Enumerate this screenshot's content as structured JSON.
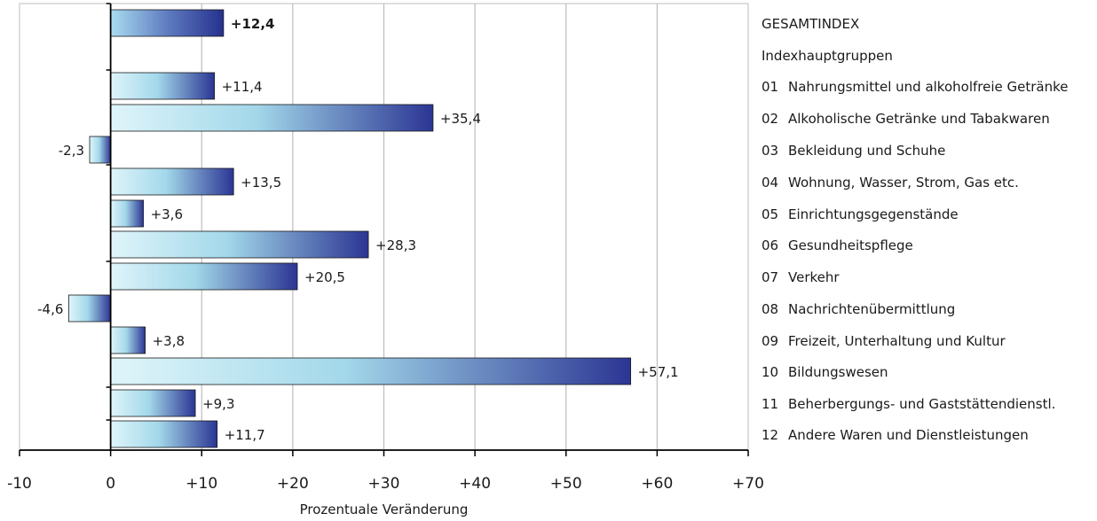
{
  "chart_data": {
    "type": "bar",
    "orientation": "horizontal",
    "xlabel": "Prozentuale Veränderung",
    "xlim": [
      -10,
      70
    ],
    "xticks": [
      "-10",
      "0",
      "+10",
      "+20",
      "+30",
      "+40",
      "+50",
      "+60",
      "+70"
    ],
    "grid": true,
    "header_category": "GESAMTINDEX",
    "group_heading": "Indexhauptgruppen",
    "bars": [
      {
        "code": "",
        "label": "GESAMTINDEX",
        "value": 12.4,
        "value_label": "+12,4",
        "emphasis": true
      },
      {
        "code": "01",
        "label": "Nahrungsmittel und alkoholfreie Getränke",
        "value": 11.4,
        "value_label": "+11,4"
      },
      {
        "code": "02",
        "label": "Alkoholische Getränke und Tabakwaren",
        "value": 35.4,
        "value_label": "+35,4"
      },
      {
        "code": "03",
        "label": "Bekleidung und Schuhe",
        "value": -2.3,
        "value_label": "-2,3"
      },
      {
        "code": "04",
        "label": "Wohnung, Wasser, Strom, Gas etc.",
        "value": 13.5,
        "value_label": "+13,5"
      },
      {
        "code": "05",
        "label": "Einrichtungsgegenstände",
        "value": 3.6,
        "value_label": "+3,6"
      },
      {
        "code": "06",
        "label": "Gesundheitspflege",
        "value": 28.3,
        "value_label": "+28,3"
      },
      {
        "code": "07",
        "label": "Verkehr",
        "value": 20.5,
        "value_label": "+20,5"
      },
      {
        "code": "08",
        "label": "Nachrichtenübermittlung",
        "value": -4.6,
        "value_label": "-4,6"
      },
      {
        "code": "09",
        "label": "Freizeit, Unterhaltung und Kultur",
        "value": 3.8,
        "value_label": "+3,8"
      },
      {
        "code": "10",
        "label": "Bildungswesen",
        "value": 57.1,
        "value_label": "+57,1"
      },
      {
        "code": "11",
        "label": "Beherbergungs- und Gaststättendienstl.",
        "value": 9.3,
        "value_label": "+9,3"
      },
      {
        "code": "12",
        "label": "Andere Waren und Dienstleistungen",
        "value": 11.7,
        "value_label": "+11,7"
      }
    ],
    "colors": {
      "bar_light": "#cfeef6",
      "bar_dark": "#2b3593",
      "overall_light": "#a9dcf0",
      "overall_dark": "#25318e",
      "grid": "#bdbdbd",
      "axis": "#000000",
      "text": "#1a1a1a"
    }
  }
}
